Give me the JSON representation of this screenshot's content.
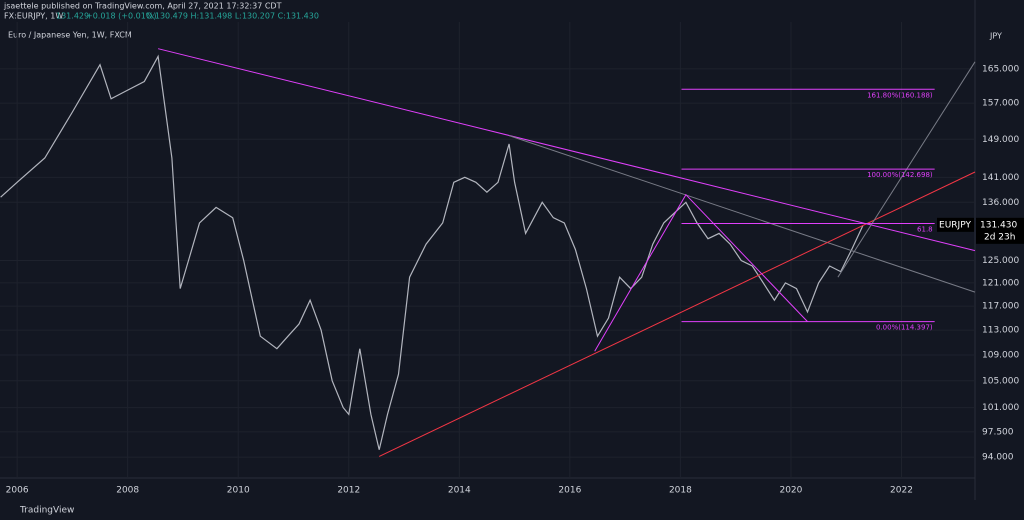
{
  "chart_data": {
    "type": "line",
    "header": {
      "publisher": "jsaettele published on TradingView.com, April 27, 2021 17:32:37 CDT",
      "symbol": "FX:EURJPY, 1W",
      "last": "131.429",
      "change": "+0.018 (+0.01%)",
      "ohlc": "O:130.479 H:131.498 L:130.207 C:131.430"
    },
    "currency": "JPY",
    "ticker": "EURJPY",
    "price_label": "131.430",
    "countdown": "2d 23h",
    "footer": "TradingView",
    "log_scale": true,
    "x": [
      2005.7,
      2006.0,
      2006.5,
      2007.0,
      2007.5,
      2007.7,
      2008.0,
      2008.3,
      2008.55,
      2008.8,
      2008.95,
      2009.1,
      2009.3,
      2009.6,
      2009.9,
      2010.1,
      2010.4,
      2010.7,
      2010.9,
      2011.1,
      2011.3,
      2011.5,
      2011.7,
      2011.9,
      2012.0,
      2012.2,
      2012.4,
      2012.55,
      2012.7,
      2012.9,
      2013.1,
      2013.4,
      2013.7,
      2013.9,
      2014.1,
      2014.3,
      2014.5,
      2014.7,
      2014.9,
      2015.0,
      2015.2,
      2015.5,
      2015.7,
      2015.9,
      2016.1,
      2016.3,
      2016.5,
      2016.7,
      2016.9,
      2017.1,
      2017.3,
      2017.5,
      2017.7,
      2017.9,
      2018.1,
      2018.3,
      2018.5,
      2018.7,
      2018.9,
      2019.1,
      2019.3,
      2019.5,
      2019.7,
      2019.9,
      2020.1,
      2020.3,
      2020.5,
      2020.7,
      2020.9,
      2021.1,
      2021.3
    ],
    "series": [
      {
        "name": "Euro / Japanese Yen, 1W, FXCM",
        "color": "#b2b5be",
        "values": [
          137,
          140,
          145,
          155,
          166,
          158,
          160,
          162,
          168,
          145,
          120,
          125,
          132,
          135,
          133,
          125,
          112,
          110,
          112,
          114,
          118,
          113,
          105,
          101,
          100,
          110,
          100,
          95,
          100,
          106,
          122,
          128,
          132,
          140,
          141,
          140,
          138,
          140,
          148,
          140,
          130,
          136,
          133,
          132,
          127,
          120,
          112,
          115,
          122,
          120,
          122,
          128,
          132,
          134,
          136,
          132,
          129,
          130,
          128,
          125,
          124,
          121,
          118,
          121,
          120,
          116,
          121,
          124,
          123,
          127,
          131.43
        ]
      }
    ],
    "xlim": [
      2005.69,
      2023.33
    ],
    "ylim": [
      91.2,
      176.6
    ],
    "xticks": [
      2006,
      2008,
      2010,
      2012,
      2014,
      2016,
      2018,
      2020,
      2022
    ],
    "yticks": [
      {
        "value": 94,
        "label": "94.000"
      },
      {
        "value": 97.5,
        "label": "97.500"
      },
      {
        "value": 101,
        "label": "101.000"
      },
      {
        "value": 105,
        "label": "105.000"
      },
      {
        "value": 109,
        "label": "109.000"
      },
      {
        "value": 113,
        "label": "113.000"
      },
      {
        "value": 117,
        "label": "117.000"
      },
      {
        "value": 121,
        "label": "121.000"
      },
      {
        "value": 125,
        "label": "125.000"
      },
      {
        "value": 136,
        "label": "136.000"
      },
      {
        "value": 141,
        "label": "141.000"
      },
      {
        "value": 149,
        "label": "149.000"
      },
      {
        "value": 157,
        "label": "157.000"
      },
      {
        "value": 165,
        "label": "165.000"
      }
    ],
    "trendlines": [
      {
        "color": "#e040fb",
        "x": [
          2008.55,
          2023.33
        ],
        "y": [
          169.9,
          126.8
        ]
      },
      {
        "color": "#787b86",
        "x": [
          2014.9,
          2023.33
        ],
        "y": [
          149.8,
          119.4
        ]
      },
      {
        "color": "#f23645",
        "x": [
          2012.55,
          2023.33
        ],
        "y": [
          94.1,
          142.1
        ]
      },
      {
        "color": "#787b86",
        "x": [
          2020.85,
          2023.33
        ],
        "y": [
          122.0,
          166.7
        ]
      },
      {
        "color": "#e040fb",
        "x": [
          2016.45,
          2018.1,
          2020.3
        ],
        "y": [
          109.6,
          137.5,
          114.4
        ]
      }
    ],
    "fib_range": [
      2018.02,
      2022.6
    ],
    "fib_levels": [
      {
        "label": "161.80%(160.188)",
        "value": 160.188
      },
      {
        "label": "100.00%(142.698)",
        "value": 142.698
      },
      {
        "label": "61.8",
        "value": 131.88
      },
      {
        "label": "0.00%(114.397)",
        "value": 114.397
      }
    ]
  }
}
